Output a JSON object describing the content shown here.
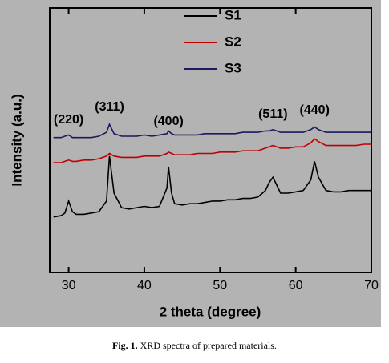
{
  "chart_data": {
    "type": "line",
    "x_label": "2 theta (degree)",
    "y_label": "Intensity (a.u.)",
    "caption_label": "Fig. 1.",
    "caption": "XRD spectra of prepared materials.",
    "xlim": [
      27.5,
      70
    ],
    "xticks": [
      30,
      40,
      50,
      60,
      70
    ],
    "ylim": [
      0,
      100
    ],
    "annotations": [
      {
        "text": "(220)",
        "x": 30
      },
      {
        "text": "(311)",
        "x": 35.4
      },
      {
        "text": "(400)",
        "x": 43.2
      },
      {
        "text": "(511)",
        "x": 57
      },
      {
        "text": "(440)",
        "x": 62.5
      }
    ],
    "x": [
      28,
      29,
      29.5,
      30,
      30.5,
      31,
      32,
      33,
      34,
      35,
      35.4,
      36,
      37,
      38,
      39,
      40,
      41,
      42,
      43,
      43.2,
      43.6,
      44,
      45,
      46,
      47,
      48,
      49,
      50,
      51,
      52,
      53,
      54,
      55,
      56,
      56.5,
      57,
      57.5,
      58,
      59,
      60,
      61,
      62,
      62.5,
      63,
      64,
      65,
      66,
      67,
      68,
      69,
      70
    ],
    "series": [
      {
        "name": "S1",
        "color": "#000000",
        "values": [
          21,
          21.5,
          22.5,
          27,
          23,
          22,
          22,
          22.5,
          23,
          27,
          44,
          30,
          24.5,
          24,
          24.5,
          25,
          24.5,
          25,
          32,
          40,
          30,
          26,
          25.5,
          26,
          26,
          26.5,
          27,
          27,
          27.5,
          27.5,
          28,
          28,
          28.5,
          31,
          34,
          36,
          33,
          30,
          30,
          30.5,
          31,
          35,
          42,
          36,
          31,
          30.5,
          30.5,
          31,
          31,
          31,
          31
        ]
      },
      {
        "name": "S2",
        "color": "#c00000",
        "values": [
          41.5,
          41.5,
          42,
          42.5,
          42,
          42,
          42.5,
          42.5,
          43,
          44,
          45,
          44,
          43.5,
          43.5,
          43.5,
          44,
          44,
          44,
          45,
          45.5,
          45,
          44.5,
          44.5,
          44.5,
          45,
          45,
          45,
          45.5,
          45.5,
          45.5,
          46,
          46,
          46,
          47,
          47.5,
          48,
          47.5,
          47,
          47,
          47.5,
          47.5,
          49,
          50.5,
          49.5,
          48,
          48,
          48,
          48,
          48,
          48.5,
          48.5
        ]
      },
      {
        "name": "S3",
        "color": "#1a1a5e",
        "values": [
          51,
          51,
          51.5,
          52,
          51,
          51,
          51,
          51,
          51.5,
          53,
          56,
          52.5,
          51.5,
          51.5,
          51.5,
          52,
          51.5,
          52,
          52.5,
          53.5,
          52.5,
          52,
          52,
          52,
          52,
          52.5,
          52.5,
          52.5,
          52.5,
          52.5,
          53,
          53,
          53,
          53.5,
          53.5,
          54,
          53.5,
          53,
          53,
          53,
          53,
          54,
          55,
          54,
          53,
          53,
          53,
          53,
          53,
          53,
          53
        ]
      }
    ]
  }
}
